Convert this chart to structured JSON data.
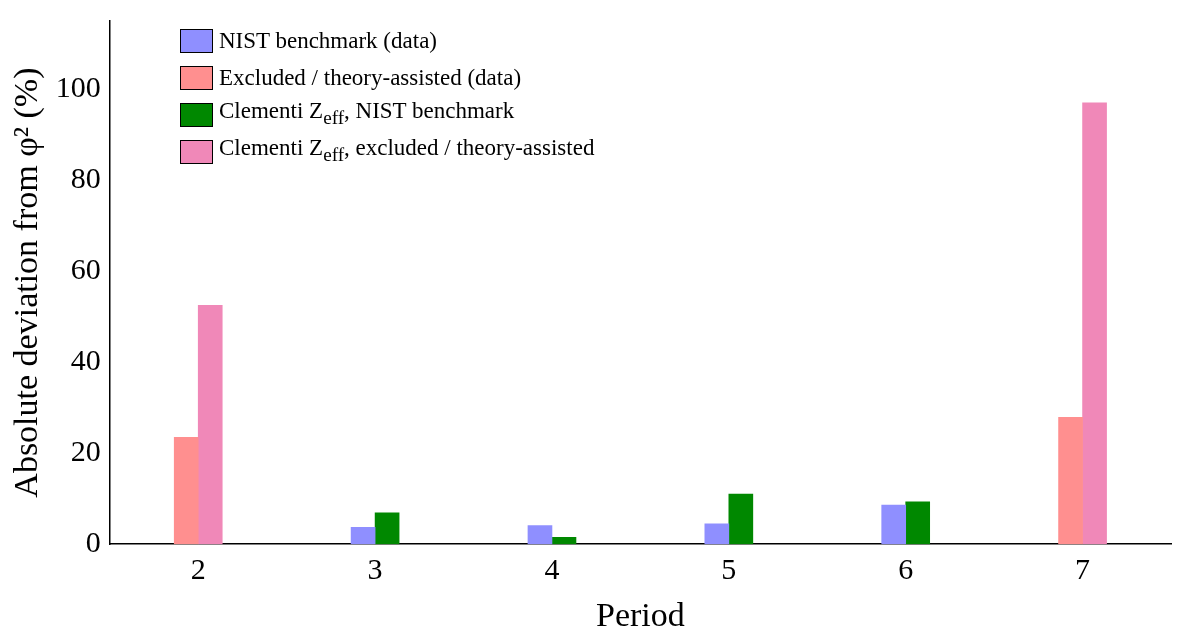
{
  "chart_data": {
    "type": "bar",
    "xlabel": "Period",
    "ylabel": "Absolute deviation from φ² (%)",
    "categories": [
      "2",
      "3",
      "4",
      "5",
      "6",
      "7"
    ],
    "series": [
      {
        "name": "NIST benchmark (data)",
        "color": "#8f8fff",
        "values": [
          null,
          3.7,
          4.1,
          4.5,
          8.6,
          null
        ]
      },
      {
        "name": "Excluded / theory-assisted (data)",
        "color": "#ff8f8f",
        "values": [
          23.5,
          null,
          null,
          null,
          null,
          27.9
        ]
      },
      {
        "name": "Clementi Z$_{eff}$, NIST benchmark",
        "color": "#008800",
        "values": [
          null,
          6.9,
          1.5,
          11.0,
          9.3,
          null
        ]
      },
      {
        "name": "Clementi Z$_{eff}$, excluded / theory-assisted",
        "color": "#f088b8",
        "values": [
          52.5,
          null,
          null,
          null,
          null,
          97.0
        ]
      }
    ],
    "ylim": [
      0,
      115
    ],
    "yticks": [
      0,
      20,
      40,
      60,
      80,
      100
    ],
    "grid": false,
    "legend": "top left"
  }
}
